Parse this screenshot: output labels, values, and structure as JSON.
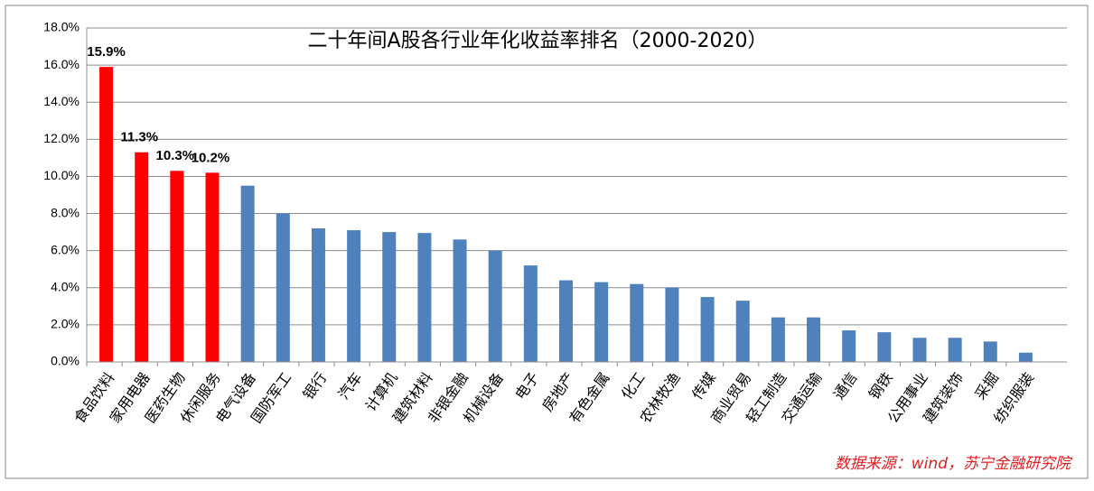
{
  "chart_data": {
    "type": "bar",
    "title": "二十年间A股各行业年化收益率排名（2000-2020）",
    "source": "数据来源：wind，苏宁金融研究院",
    "categories": [
      "食品饮料",
      "家用电器",
      "医药生物",
      "休闲服务",
      "电气设备",
      "国防军工",
      "银行",
      "汽车",
      "计算机",
      "建筑材料",
      "非银金融",
      "机械设备",
      "电子",
      "房地产",
      "有色金属",
      "化工",
      "农林牧渔",
      "传媒",
      "商业贸易",
      "轻工制造",
      "交通运输",
      "通信",
      "钢铁",
      "公用事业",
      "建筑装饰",
      "采掘",
      "纺织服装"
    ],
    "values": [
      15.9,
      11.3,
      10.3,
      10.2,
      9.5,
      8.0,
      7.2,
      7.1,
      7.0,
      6.95,
      6.6,
      6.0,
      5.2,
      4.4,
      4.3,
      4.2,
      4.0,
      3.5,
      3.3,
      2.4,
      2.4,
      1.7,
      1.6,
      1.3,
      1.3,
      1.1,
      0.5
    ],
    "value_labels": [
      "15.9%",
      "11.3%",
      "10.3%",
      "10.2%",
      null,
      null,
      null,
      null,
      null,
      null,
      null,
      null,
      null,
      null,
      null,
      null,
      null,
      null,
      null,
      null,
      null,
      null,
      null,
      null,
      null,
      null,
      null
    ],
    "colors": [
      "#ff0000",
      "#ff0000",
      "#ff0000",
      "#ff0000",
      "#4f81bd",
      "#4f81bd",
      "#4f81bd",
      "#4f81bd",
      "#4f81bd",
      "#4f81bd",
      "#4f81bd",
      "#4f81bd",
      "#4f81bd",
      "#4f81bd",
      "#4f81bd",
      "#4f81bd",
      "#4f81bd",
      "#4f81bd",
      "#4f81bd",
      "#4f81bd",
      "#4f81bd",
      "#4f81bd",
      "#4f81bd",
      "#4f81bd",
      "#4f81bd",
      "#4f81bd",
      "#4f81bd"
    ],
    "ylim": [
      0,
      18
    ],
    "yticks": [
      {
        "value": 0,
        "label": "0.0%"
      },
      {
        "value": 2,
        "label": "2.0%"
      },
      {
        "value": 4,
        "label": "4.0%"
      },
      {
        "value": 6,
        "label": "6.0%"
      },
      {
        "value": 8,
        "label": "8.0%"
      },
      {
        "value": 10,
        "label": "10.0%"
      },
      {
        "value": 12,
        "label": "12.0%"
      },
      {
        "value": 14,
        "label": "14.0%"
      },
      {
        "value": 16,
        "label": "16.0%"
      },
      {
        "value": 18,
        "label": "18.0%"
      }
    ],
    "grid": true
  }
}
